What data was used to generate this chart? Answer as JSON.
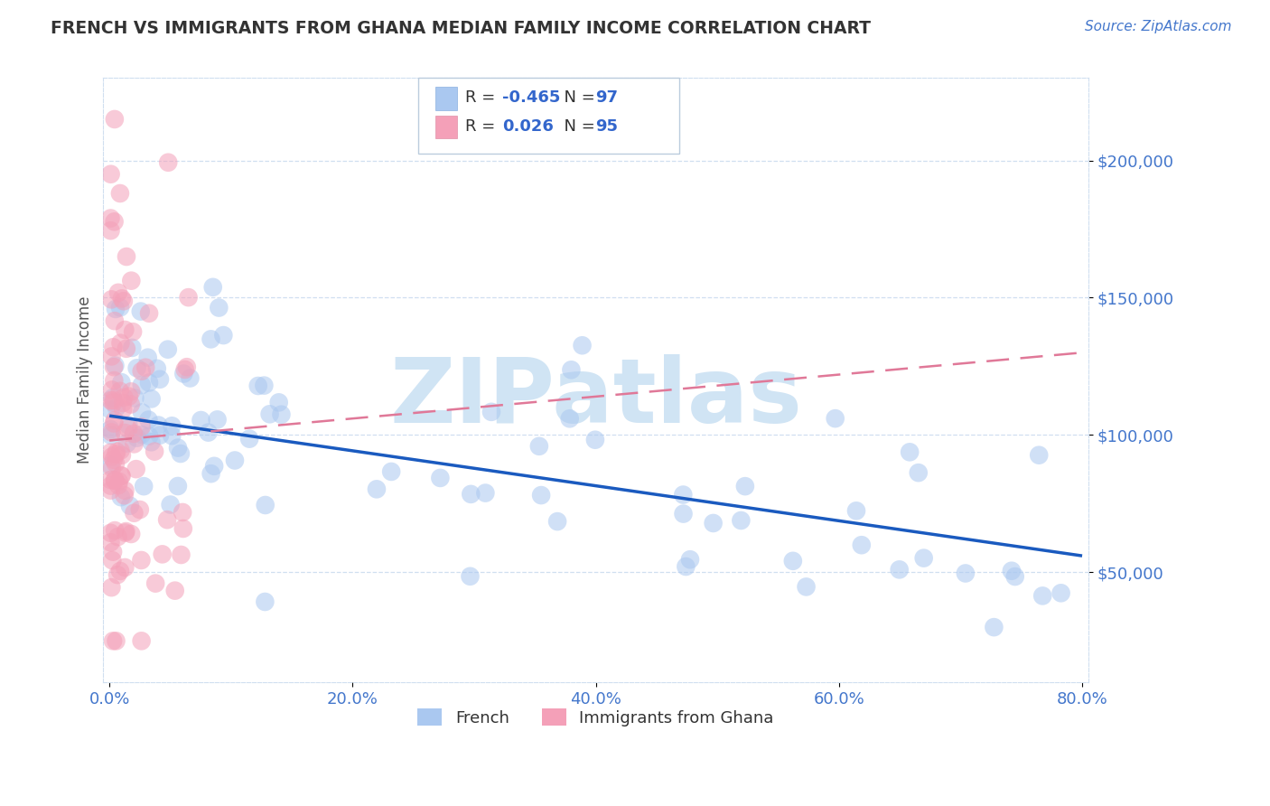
{
  "title": "FRENCH VS IMMIGRANTS FROM GHANA MEDIAN FAMILY INCOME CORRELATION CHART",
  "source_text": "Source: ZipAtlas.com",
  "ylabel": "Median Family Income",
  "xlim": [
    -0.005,
    0.805
  ],
  "ylim": [
    10000,
    230000
  ],
  "xtick_vals": [
    0.0,
    0.2,
    0.4,
    0.6,
    0.8
  ],
  "xtick_labels": [
    "0.0%",
    "20.0%",
    "40.0%",
    "60.0%",
    "80.0%"
  ],
  "ytick_vals": [
    50000,
    100000,
    150000,
    200000
  ],
  "ytick_labels": [
    "$50,000",
    "$100,000",
    "$150,000",
    "$200,000"
  ],
  "french_color": "#aac8f0",
  "french_line_color": "#1a5abf",
  "ghana_color": "#f4a0b8",
  "ghana_line_color": "#e07898",
  "french_R": -0.465,
  "french_N": 97,
  "ghana_R": 0.026,
  "ghana_N": 95,
  "blue_text_color": "#3366cc",
  "dark_text_color": "#333333",
  "title_color": "#333333",
  "axis_tick_color": "#4477cc",
  "grid_color": "#d0dff0",
  "watermark_color": "#d0e4f4",
  "background_color": "#ffffff",
  "french_line_x0": 0.0,
  "french_line_x1": 0.8,
  "french_line_y0": 107000,
  "french_line_y1": 56000,
  "ghana_line_x0": 0.0,
  "ghana_line_x1": 0.8,
  "ghana_line_y0": 98000,
  "ghana_line_y1": 130000
}
